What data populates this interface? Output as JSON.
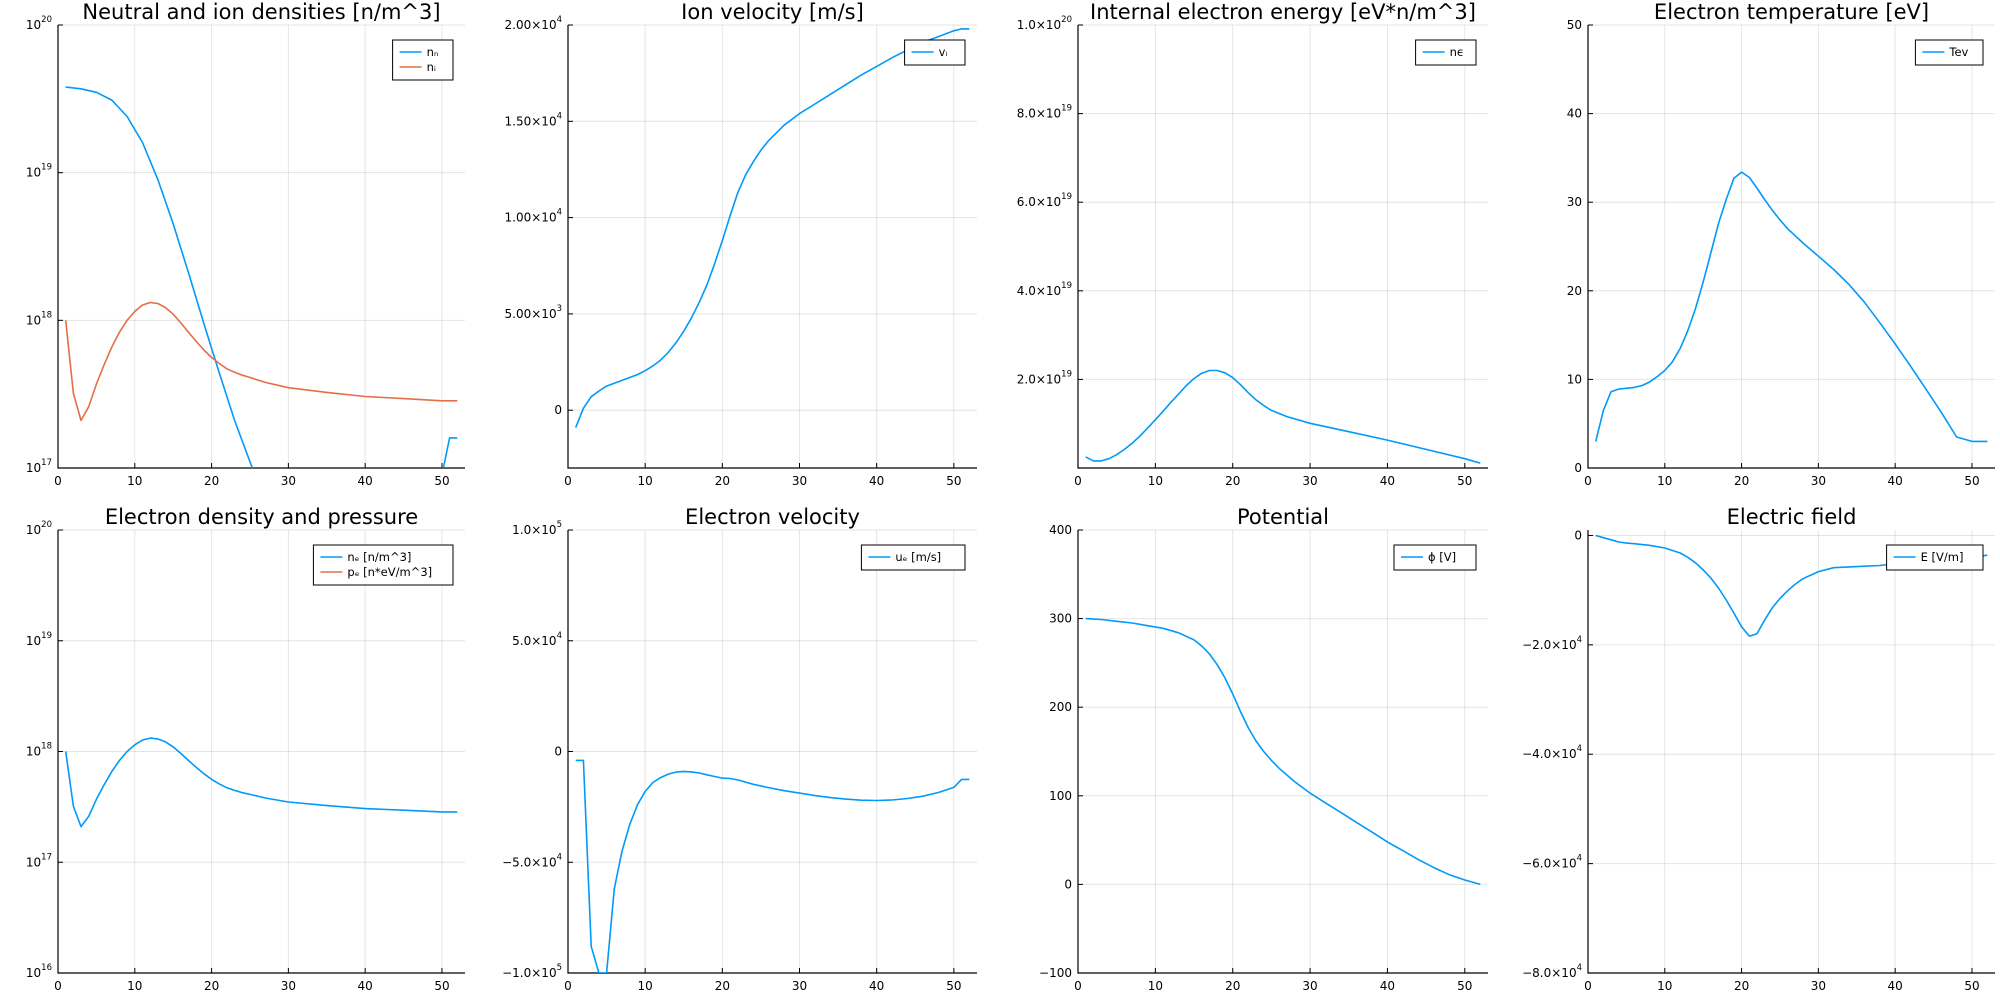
{
  "chart_data": [
    {
      "type": "line",
      "title": "Neutral and ion densities [n/m^3]",
      "xlim": [
        0,
        53
      ],
      "xticks": [
        0,
        10,
        20,
        30,
        40,
        50
      ],
      "yscale": "log",
      "ylim": [
        1e+17,
        1e+20
      ],
      "yticks": [
        1e+17,
        1e+18,
        1e+19,
        1e+20
      ],
      "ytick_labels": [
        {
          "base": "10",
          "exp": "17"
        },
        {
          "base": "10",
          "exp": "18"
        },
        {
          "base": "10",
          "exp": "19"
        },
        {
          "base": "10",
          "exp": "20"
        }
      ],
      "legend": "top-right",
      "series": [
        {
          "name": "nₙ",
          "color": "#009AFA",
          "x": [
            1,
            3,
            5,
            7,
            9,
            11,
            13,
            15,
            17,
            19,
            21,
            23,
            25,
            27,
            28,
            50,
            51,
            52
          ],
          "y": [
            3.8e+19,
            3.7e+19,
            3.5e+19,
            3.1e+19,
            2.4e+19,
            1.6e+19,
            9e+18,
            4.5e+18,
            2.1e+18,
            9.5e+17,
            4.4e+17,
            2.1e+17,
            1.1e+17,
            6e+16,
            4.5e+16,
            9e+16,
            1.6e+17,
            1.6e+17
          ]
        },
        {
          "name": "nᵢ",
          "color": "#E36F47",
          "x": [
            1,
            2,
            3,
            4,
            5,
            6,
            7,
            8,
            9,
            10,
            11,
            12,
            13,
            14,
            15,
            16,
            17,
            18,
            19,
            20,
            21,
            22,
            23,
            24,
            25,
            27,
            30,
            35,
            40,
            45,
            50,
            52
          ],
          "y": [
            1e+18,
            3.2e+17,
            2.1e+17,
            2.6e+17,
            3.7e+17,
            5e+17,
            6.6e+17,
            8.3e+17,
            1e+18,
            1.15e+18,
            1.27e+18,
            1.32e+18,
            1.3e+18,
            1.22e+18,
            1.1e+18,
            9.6e+17,
            8.3e+17,
            7.2e+17,
            6.3e+17,
            5.6e+17,
            5.1e+17,
            4.7e+17,
            4.45e+17,
            4.25e+17,
            4.1e+17,
            3.8e+17,
            3.5e+17,
            3.25e+17,
            3.05e+17,
            2.95e+17,
            2.85e+17,
            2.85e+17
          ]
        }
      ]
    },
    {
      "type": "line",
      "title": "Ion velocity [m/s]",
      "xlim": [
        0,
        53
      ],
      "xticks": [
        0,
        10,
        20,
        30,
        40,
        50
      ],
      "yscale": "linear",
      "ylim": [
        -3000,
        20000
      ],
      "yticks": [
        0,
        5000,
        10000,
        15000,
        20000
      ],
      "ytick_labels": [
        {
          "base": "0",
          "exp": ""
        },
        {
          "base": "5.00×10",
          "exp": "3"
        },
        {
          "base": "1.00×10",
          "exp": "4"
        },
        {
          "base": "1.50×10",
          "exp": "4"
        },
        {
          "base": "2.00×10",
          "exp": "4"
        }
      ],
      "legend": "top-right",
      "series": [
        {
          "name": "vᵢ",
          "color": "#009AFA",
          "x": [
            1,
            2,
            3,
            4,
            5,
            6,
            7,
            8,
            9,
            10,
            11,
            12,
            13,
            14,
            15,
            16,
            17,
            18,
            19,
            20,
            21,
            22,
            23,
            24,
            25,
            26,
            28,
            30,
            32,
            34,
            36,
            38,
            40,
            42,
            44,
            46,
            48,
            50,
            51,
            52
          ],
          "y": [
            -900,
            100,
            700,
            1000,
            1250,
            1400,
            1550,
            1700,
            1850,
            2050,
            2300,
            2600,
            3000,
            3500,
            4100,
            4800,
            5600,
            6500,
            7600,
            8800,
            10100,
            11300,
            12200,
            12900,
            13500,
            14000,
            14800,
            15400,
            15900,
            16400,
            16900,
            17400,
            17850,
            18300,
            18700,
            19100,
            19400,
            19700,
            19800,
            19800
          ]
        }
      ]
    },
    {
      "type": "line",
      "title": "Internal electron energy [eV*n/m^3]",
      "xlim": [
        0,
        53
      ],
      "xticks": [
        0,
        10,
        20,
        30,
        40,
        50
      ],
      "yscale": "linear",
      "ylim": [
        0,
        1e+20
      ],
      "yticks": [
        2e+19,
        4e+19,
        6e+19,
        8e+19,
        1e+20
      ],
      "ytick_labels": [
        {
          "base": "2.0×10",
          "exp": "19"
        },
        {
          "base": "4.0×10",
          "exp": "19"
        },
        {
          "base": "6.0×10",
          "exp": "19"
        },
        {
          "base": "8.0×10",
          "exp": "19"
        },
        {
          "base": "1.0×10",
          "exp": "20"
        }
      ],
      "legend": "top-right",
      "series": [
        {
          "name": "nϵ",
          "color": "#009AFA",
          "x": [
            1,
            2,
            3,
            4,
            5,
            6,
            7,
            8,
            9,
            10,
            11,
            12,
            13,
            14,
            15,
            16,
            17,
            18,
            19,
            20,
            21,
            22,
            23,
            24,
            25,
            27,
            30,
            35,
            40,
            45,
            50,
            52
          ],
          "y": [
            2.5e+18,
            1.6e+18,
            1.6e+18,
            2.1e+18,
            3e+18,
            4.2e+18,
            5.6e+18,
            7.2e+18,
            9e+18,
            1.09e+19,
            1.28e+19,
            1.48e+19,
            1.67e+19,
            1.86e+19,
            2.02e+19,
            2.14e+19,
            2.2e+19,
            2.2e+19,
            2.15e+19,
            2.04e+19,
            1.88e+19,
            1.7e+19,
            1.54e+19,
            1.41e+19,
            1.3e+19,
            1.16e+19,
            1.01e+19,
            8.2e+18,
            6.3e+18,
            4.2e+18,
            2.1e+18,
            1.1e+18
          ]
        }
      ]
    },
    {
      "type": "line",
      "title": "Electron temperature [eV]",
      "xlim": [
        0,
        53
      ],
      "xticks": [
        0,
        10,
        20,
        30,
        40,
        50
      ],
      "yscale": "linear",
      "ylim": [
        0,
        50
      ],
      "yticks": [
        0,
        10,
        20,
        30,
        40,
        50
      ],
      "ytick_labels": [
        {
          "base": "0",
          "exp": ""
        },
        {
          "base": "10",
          "exp": ""
        },
        {
          "base": "20",
          "exp": ""
        },
        {
          "base": "30",
          "exp": ""
        },
        {
          "base": "40",
          "exp": ""
        },
        {
          "base": "50",
          "exp": ""
        }
      ],
      "legend": "top-right",
      "series": [
        {
          "name": "Tev",
          "color": "#009AFA",
          "x": [
            1,
            2,
            3,
            4,
            5,
            6,
            7,
            8,
            9,
            10,
            11,
            12,
            13,
            14,
            15,
            16,
            17,
            18,
            19,
            20,
            21,
            22,
            23,
            24,
            25,
            26,
            28,
            30,
            32,
            34,
            36,
            38,
            40,
            42,
            44,
            46,
            48,
            50,
            51,
            52
          ],
          "y": [
            3,
            6.5,
            8.6,
            8.9,
            9.0,
            9.1,
            9.3,
            9.7,
            10.3,
            11.0,
            12.0,
            13.5,
            15.5,
            18.0,
            21.0,
            24.3,
            27.6,
            30.3,
            32.7,
            33.4,
            32.8,
            31.6,
            30.3,
            29.1,
            28.0,
            27.0,
            25.4,
            23.9,
            22.4,
            20.7,
            18.7,
            16.4,
            14.0,
            11.5,
            8.9,
            6.3,
            3.5,
            3.0,
            3.0,
            3.0
          ]
        }
      ]
    },
    {
      "type": "line",
      "title": "Electron density and pressure",
      "xlim": [
        0,
        53
      ],
      "xticks": [
        0,
        10,
        20,
        30,
        40,
        50
      ],
      "yscale": "log",
      "ylim": [
        1e+16,
        1e+20
      ],
      "yticks": [
        1e+16,
        1e+17,
        1e+18,
        1e+19,
        1e+20
      ],
      "ytick_labels": [
        {
          "base": "10",
          "exp": "16"
        },
        {
          "base": "10",
          "exp": "17"
        },
        {
          "base": "10",
          "exp": "18"
        },
        {
          "base": "10",
          "exp": "19"
        },
        {
          "base": "10",
          "exp": "20"
        }
      ],
      "legend": "top-right",
      "series": [
        {
          "name": "nₑ [n/m^3]",
          "color": "#009AFA",
          "x": [
            1,
            2,
            3,
            4,
            5,
            6,
            7,
            8,
            9,
            10,
            11,
            12,
            13,
            14,
            15,
            16,
            17,
            18,
            19,
            20,
            21,
            22,
            23,
            24,
            25,
            27,
            30,
            35,
            40,
            45,
            50,
            52
          ],
          "y": [
            1e+18,
            3.2e+17,
            2.1e+17,
            2.6e+17,
            3.7e+17,
            5e+17,
            6.6e+17,
            8.3e+17,
            1e+18,
            1.15e+18,
            1.27e+18,
            1.32e+18,
            1.3e+18,
            1.22e+18,
            1.1e+18,
            9.6e+17,
            8.3e+17,
            7.2e+17,
            6.3e+17,
            5.6e+17,
            5.1e+17,
            4.7e+17,
            4.45e+17,
            4.25e+17,
            4.1e+17,
            3.8e+17,
            3.5e+17,
            3.25e+17,
            3.05e+17,
            2.95e+17,
            2.85e+17,
            2.85e+17
          ]
        },
        {
          "name": "pₑ [n*eV/m^3]",
          "color": "#E36F47",
          "x": [],
          "y": []
        }
      ]
    },
    {
      "type": "line",
      "title": "Electron velocity",
      "xlim": [
        0,
        53
      ],
      "xticks": [
        0,
        10,
        20,
        30,
        40,
        50
      ],
      "yscale": "linear",
      "ylim": [
        -100000,
        100000
      ],
      "yticks": [
        -100000,
        -50000,
        0,
        50000,
        100000
      ],
      "ytick_labels": [
        {
          "base": "−1.0×10",
          "exp": "5"
        },
        {
          "base": "−5.0×10",
          "exp": "4"
        },
        {
          "base": "0",
          "exp": ""
        },
        {
          "base": "5.0×10",
          "exp": "4"
        },
        {
          "base": "1.0×10",
          "exp": "5"
        }
      ],
      "legend": "top-right",
      "series": [
        {
          "name": "uₑ [m/s]",
          "color": "#009AFA",
          "x": [
            1,
            2,
            3,
            4,
            5,
            6,
            7,
            8,
            9,
            10,
            11,
            12,
            13,
            14,
            15,
            16,
            17,
            18,
            19,
            20,
            21,
            22,
            23,
            24,
            26,
            28,
            30,
            32,
            34,
            36,
            38,
            40,
            42,
            44,
            46,
            48,
            50,
            51,
            52
          ],
          "y": [
            -4000,
            -4000,
            -88000,
            -100000,
            -100000,
            -62000,
            -45000,
            -33000,
            -24000,
            -18000,
            -14000,
            -11800,
            -10200,
            -9300,
            -9000,
            -9200,
            -9700,
            -10500,
            -11300,
            -12000,
            -12200,
            -12800,
            -13800,
            -14800,
            -16300,
            -17700,
            -18800,
            -19900,
            -20800,
            -21500,
            -22000,
            -22100,
            -21900,
            -21200,
            -20200,
            -18500,
            -16200,
            -12600,
            -12600
          ]
        }
      ]
    },
    {
      "type": "line",
      "title": "Potential",
      "xlim": [
        0,
        53
      ],
      "xticks": [
        0,
        10,
        20,
        30,
        40,
        50
      ],
      "yscale": "linear",
      "ylim": [
        -100,
        400
      ],
      "yticks": [
        -100,
        0,
        100,
        200,
        300,
        400
      ],
      "ytick_labels": [
        {
          "base": "−100",
          "exp": ""
        },
        {
          "base": "0",
          "exp": ""
        },
        {
          "base": "100",
          "exp": ""
        },
        {
          "base": "200",
          "exp": ""
        },
        {
          "base": "300",
          "exp": ""
        },
        {
          "base": "400",
          "exp": ""
        }
      ],
      "legend": "top-right",
      "series": [
        {
          "name": "ϕ [V]",
          "color": "#009AFA",
          "x": [
            1,
            3,
            5,
            7,
            9,
            11,
            13,
            15,
            16,
            17,
            18,
            19,
            20,
            21,
            22,
            23,
            24,
            25,
            26,
            28,
            30,
            32,
            34,
            36,
            38,
            40,
            42,
            44,
            46,
            48,
            50,
            52
          ],
          "y": [
            300,
            299,
            297,
            295,
            292,
            289,
            284,
            276,
            269,
            260,
            248,
            233,
            215,
            195,
            177,
            162,
            150,
            140,
            131,
            116,
            103,
            92,
            81,
            70,
            59,
            48,
            38,
            28,
            19,
            11,
            5,
            0
          ]
        }
      ]
    },
    {
      "type": "line",
      "title": "Electric field",
      "xlim": [
        0,
        53
      ],
      "xticks": [
        0,
        10,
        20,
        30,
        40,
        50
      ],
      "yscale": "linear",
      "ylim": [
        -80000,
        1000
      ],
      "yticks": [
        -80000,
        -60000,
        -40000,
        -20000,
        0
      ],
      "ytick_labels": [
        {
          "base": "−8.0×10",
          "exp": "4"
        },
        {
          "base": "−6.0×10",
          "exp": "4"
        },
        {
          "base": "−4.0×10",
          "exp": "4"
        },
        {
          "base": "−2.0×10",
          "exp": "4"
        },
        {
          "base": "0",
          "exp": ""
        }
      ],
      "legend": "top-right",
      "series": [
        {
          "name": "E [V/m]",
          "color": "#009AFA",
          "x": [
            1,
            2,
            3,
            4,
            5,
            6,
            8,
            10,
            12,
            13,
            14,
            15,
            16,
            17,
            18,
            19,
            20,
            21,
            22,
            23,
            24,
            25,
            26,
            27,
            28,
            30,
            32,
            35,
            38,
            40,
            43,
            46,
            49,
            51,
            52
          ],
          "y": [
            0,
            -400,
            -800,
            -1200,
            -1400,
            -1500,
            -1800,
            -2300,
            -3200,
            -4000,
            -5000,
            -6300,
            -7800,
            -9600,
            -11800,
            -14200,
            -16700,
            -18400,
            -18000,
            -15500,
            -13200,
            -11500,
            -10100,
            -8900,
            -7900,
            -6600,
            -5900,
            -5700,
            -5500,
            -5200,
            -4900,
            -4500,
            -4100,
            -3800,
            -3600
          ]
        }
      ]
    }
  ]
}
